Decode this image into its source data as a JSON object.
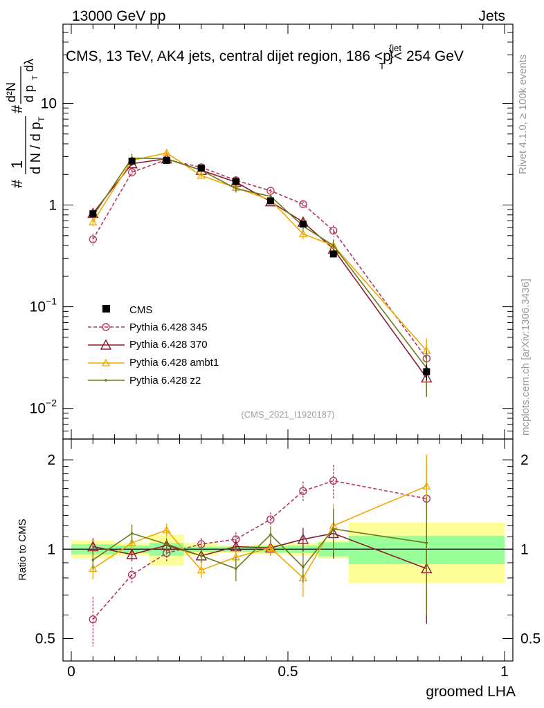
{
  "header": {
    "left_label": "13000 GeV pp",
    "right_label": "Jets",
    "title_main": "CMS, 13 TeV, AK4 jets, central dijet region, 186 <p",
    "title_sub_T": "T",
    "title_sup_jet": "{jet",
    "title_end": "}< 254 GeV",
    "analysis_tag": "(CMS_2021_I1920187)",
    "rivet_label": "Rivet 4.1.0, ≥ 100k events",
    "mcplots_label": "mcplots.cern.ch [arXiv:1306.3436]"
  },
  "axes": {
    "top_ylabel": {
      "hash": "#",
      "one": "1",
      "dN": "d N / d p",
      "T": "T",
      "d2N": "d²N",
      "dpdl": "d p",
      "dlambda": "dλ"
    },
    "bottom_ylabel": "Ratio to CMS",
    "xlabel": "groomed LHA",
    "top_yticks": [
      {
        "label": "10",
        "exp": "−2"
      },
      {
        "label": "10",
        "exp": "−1"
      },
      {
        "label": "1",
        "exp": ""
      },
      {
        "label": "10",
        "exp": ""
      }
    ],
    "ratio_yticks": [
      "0.5",
      "1",
      "2"
    ],
    "xticks": [
      "0",
      "0.5",
      "1"
    ]
  },
  "legend": {
    "cms": "CMS",
    "p345": "Pythia 6.428 345",
    "p370": "Pythia 6.428 370",
    "ambt1": "Pythia 6.428 ambt1",
    "z2": "Pythia 6.428 z2"
  },
  "colors": {
    "cms": "#000000",
    "p345": "#b3365b",
    "p370": "#8c1a2c",
    "ambt1": "#f0a800",
    "z2": "#6b7a1a",
    "band_green": "#99ff99",
    "band_yellow": "#ffff99"
  },
  "chart_data": {
    "type": "line",
    "title": "CMS, 13 TeV, AK4 jets, central dijet region, 186 < pT jet < 254 GeV",
    "xlabel": "groomed LHA",
    "ylabel": "1/N dN/dpT d2N/dpT dλ",
    "xlim": [
      0,
      1
    ],
    "ylim_main": [
      0.005,
      60
    ],
    "ylim_ratio": [
      0.42,
      2.35
    ],
    "yscale": "log",
    "x": [
      0.05,
      0.14,
      0.22,
      0.3,
      0.38,
      0.46,
      0.535,
      0.605,
      0.82
    ],
    "bins": [
      [
        0,
        0.1
      ],
      [
        0.1,
        0.18
      ],
      [
        0.18,
        0.26
      ],
      [
        0.26,
        0.34
      ],
      [
        0.34,
        0.42
      ],
      [
        0.42,
        0.5
      ],
      [
        0.5,
        0.57
      ],
      [
        0.57,
        0.64
      ],
      [
        0.64,
        1.0
      ]
    ],
    "cms": {
      "name": "CMS",
      "values": [
        0.82,
        2.7,
        2.75,
        2.3,
        1.7,
        1.1,
        0.65,
        0.33,
        0.023
      ],
      "errors": [
        0.05,
        0.25,
        0.18,
        0.1,
        0.1,
        0.06,
        0.04,
        0.025,
        0.004
      ],
      "band_inner": [
        0.04,
        0.03,
        0.05,
        0.02,
        0.02,
        0.025,
        0.03,
        0.055,
        0.11
      ],
      "band_outer": [
        0.07,
        0.05,
        0.12,
        0.05,
        0.03,
        0.04,
        0.05,
        0.07,
        0.23
      ]
    },
    "series": [
      {
        "name": "Pythia 6.428 345",
        "key": "p345",
        "values": [
          0.46,
          2.1,
          2.8,
          2.35,
          1.75,
          1.38,
          1.02,
          0.56,
          0.031
        ],
        "errors": [
          0.06,
          0.12,
          0.12,
          0.1,
          0.08,
          0.07,
          0.08,
          0.07,
          0.01
        ],
        "ratio": [
          0.58,
          0.82,
          0.97,
          1.04,
          1.08,
          1.26,
          1.57,
          1.7,
          1.48
        ],
        "ratio_err": [
          0.11,
          0.05,
          0.06,
          0.05,
          0.06,
          0.07,
          0.12,
          0.22,
          0.42
        ]
      },
      {
        "name": "Pythia 6.428 370",
        "key": "p370",
        "values": [
          0.83,
          2.55,
          2.85,
          2.2,
          1.68,
          1.08,
          0.68,
          0.37,
          0.02
        ],
        "errors": [
          0.05,
          0.12,
          0.12,
          0.1,
          0.08,
          0.06,
          0.06,
          0.05,
          0.007
        ],
        "ratio": [
          1.02,
          0.96,
          1.03,
          0.95,
          1.02,
          1.01,
          1.08,
          1.13,
          0.86
        ],
        "ratio_err": [
          0.07,
          0.05,
          0.05,
          0.05,
          0.06,
          0.06,
          0.1,
          0.2,
          0.3
        ]
      },
      {
        "name": "Pythia 6.428 ambt1",
        "key": "ambt1",
        "values": [
          0.68,
          2.75,
          3.25,
          1.95,
          1.48,
          1.12,
          0.52,
          0.4,
          0.037
        ],
        "errors": [
          0.06,
          0.15,
          0.15,
          0.1,
          0.08,
          0.06,
          0.06,
          0.06,
          0.012
        ],
        "ratio": [
          0.86,
          1.05,
          1.16,
          0.85,
          0.94,
          1.01,
          0.8,
          1.2,
          1.63
        ],
        "ratio_err": [
          0.07,
          0.05,
          0.06,
          0.05,
          0.06,
          0.06,
          0.11,
          0.22,
          0.45
        ]
      },
      {
        "name": "Pythia 6.428 z2",
        "key": "z2",
        "values": [
          0.78,
          2.9,
          2.85,
          2.2,
          1.45,
          1.22,
          0.62,
          0.4,
          0.025
        ],
        "errors": [
          0.05,
          0.3,
          0.12,
          0.1,
          0.12,
          0.06,
          0.06,
          0.06,
          0.012
        ],
        "ratio": [
          0.92,
          1.13,
          1.04,
          0.95,
          0.86,
          1.12,
          0.87,
          1.17,
          1.05
        ],
        "ratio_err": [
          0.07,
          0.08,
          0.05,
          0.05,
          0.08,
          0.07,
          0.1,
          0.2,
          0.45
        ]
      }
    ]
  }
}
